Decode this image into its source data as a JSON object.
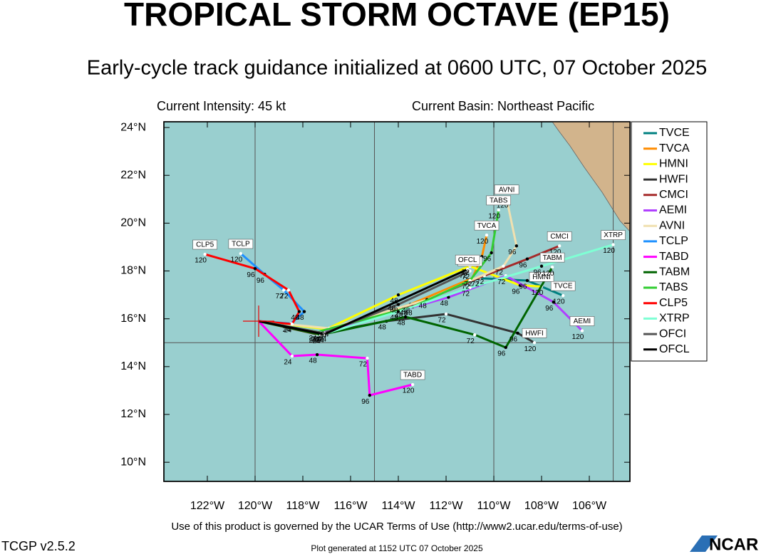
{
  "chart_data": {
    "type": "track-map",
    "title": "TROPICAL STORM OCTAVE (EP15)",
    "subtitle": "Early-cycle track guidance initialized at 0600 UTC, 07 October 2025",
    "intensity_label": "Current Intensity: 45 kt",
    "basin_label": "Current Basin: Northeast Pacific",
    "terms": "Use of this product is governed by the UCAR Terms of Use (http://www2.ucar.edu/terms-of-use)",
    "version": "TCGP v2.5.2",
    "generated": "Plot generated at 1152 UTC   07 October 2025",
    "logo": "NCAR",
    "xlim": [
      -123.82,
      -104.3
    ],
    "ylim": [
      9.2,
      24.24
    ],
    "xticks": [
      {
        "value": -122,
        "label": "122°W"
      },
      {
        "value": -120,
        "label": "120°W"
      },
      {
        "value": -118,
        "label": "118°W"
      },
      {
        "value": -116,
        "label": "116°W"
      },
      {
        "value": -114,
        "label": "114°W"
      },
      {
        "value": -112,
        "label": "112°W"
      },
      {
        "value": -110,
        "label": "110°W"
      },
      {
        "value": -108,
        "label": "108°W"
      },
      {
        "value": -106,
        "label": "106°W"
      }
    ],
    "yticks": [
      {
        "value": 10,
        "label": "10°N"
      },
      {
        "value": 12,
        "label": "12°N"
      },
      {
        "value": 14,
        "label": "14°N"
      },
      {
        "value": 16,
        "label": "16°N"
      },
      {
        "value": 18,
        "label": "18°N"
      },
      {
        "value": 20,
        "label": "20°N"
      },
      {
        "value": 22,
        "label": "22°N"
      },
      {
        "value": 24,
        "label": "24°N"
      }
    ],
    "grid_lon": [
      -120,
      -115,
      -110,
      -105
    ],
    "grid_lat": [
      15
    ],
    "current_position": {
      "lon": -119.85,
      "lat": 15.9
    },
    "hours": [
      0,
      24,
      48,
      72,
      96,
      120
    ],
    "series": [
      {
        "name": "TVCE",
        "color": "#008080",
        "lon": [
          -119.85,
          -117.3,
          -113.6,
          -110.6,
          -108.6,
          -107.1
        ],
        "lat": [
          15.9,
          15.4,
          16.5,
          17.7,
          17.6,
          16.97
        ]
      },
      {
        "name": "TVCA",
        "color": "#ff8c00",
        "lon": [
          -119.85,
          -117.3,
          -113.5,
          -110.9,
          -110.5,
          -110.3
        ],
        "lat": [
          15.9,
          15.4,
          16.6,
          17.7,
          18.6,
          19.5
        ]
      },
      {
        "name": "HMNI",
        "color": "#ffff00",
        "lon": [
          -119.85,
          -117.0,
          -114.0,
          -111.0,
          -108.9,
          -108.0
        ],
        "lat": [
          15.9,
          15.57,
          17.0,
          18.2,
          17.4,
          17.35
        ]
      },
      {
        "name": "HWFI",
        "color": "#333333",
        "lon": [
          -119.85,
          -117.2,
          -114.5,
          -112.0,
          -109.0,
          -108.3
        ],
        "lat": [
          15.9,
          15.4,
          15.9,
          16.2,
          15.4,
          15.0
        ]
      },
      {
        "name": "CMCI",
        "color": "#a52a2a",
        "lon": [
          -119.85,
          -117.4,
          -113.8,
          -110.4,
          -108.6,
          -107.25
        ],
        "lat": [
          15.9,
          15.35,
          16.4,
          17.8,
          18.5,
          19.05
        ]
      },
      {
        "name": "AEMI",
        "color": "#b040ff",
        "lon": [
          -119.85,
          -117.25,
          -111.9,
          -109.5,
          -107.5,
          -106.3
        ],
        "lat": [
          15.9,
          15.4,
          16.9,
          17.8,
          16.7,
          15.5
        ]
      },
      {
        "name": "AVNI",
        "color": "#f0e0b0",
        "lon": [
          -119.85,
          -116.9,
          -112.8,
          -109.6,
          -109.05,
          -109.46
        ],
        "lat": [
          15.9,
          15.6,
          16.8,
          18.2,
          19.05,
          21.0
        ]
      },
      {
        "name": "TCLP",
        "color": "#1e90ff",
        "lon": [
          -119.85,
          -118.5,
          -117.94,
          -118.8,
          -119.6,
          -120.6
        ],
        "lat": [
          15.9,
          15.8,
          16.3,
          17.2,
          17.86,
          18.73
        ]
      },
      {
        "name": "TABD",
        "color": "#ff00ff",
        "lon": [
          -119.85,
          -118.45,
          -117.4,
          -115.3,
          -115.2,
          -113.4
        ],
        "lat": [
          15.9,
          14.44,
          14.5,
          14.35,
          12.8,
          13.25
        ]
      },
      {
        "name": "TABM",
        "color": "#006400",
        "lon": [
          -119.85,
          -117.25,
          -113.7,
          -110.8,
          -109.5,
          -107.55
        ],
        "lat": [
          15.9,
          15.33,
          16.08,
          15.33,
          14.8,
          18.16
        ]
      },
      {
        "name": "TABS",
        "color": "#32cd32",
        "lon": [
          -119.85,
          -117.4,
          -113.4,
          -111.0,
          -110.1,
          -109.8
        ],
        "lat": [
          15.9,
          15.45,
          16.5,
          17.6,
          18.76,
          20.55
        ]
      },
      {
        "name": "CLP5",
        "color": "#ff0000",
        "lon": [
          -119.85,
          -118.45,
          -118.15,
          -118.6,
          -120.0,
          -122.1
        ],
        "lat": [
          15.9,
          15.78,
          16.3,
          17.2,
          18.1,
          18.7
        ]
      },
      {
        "name": "XTRP",
        "color": "#7fffd4",
        "lon": [
          -119.85,
          -117.0,
          -114.0,
          -111.0,
          -108.0,
          -105.0
        ],
        "lat": [
          15.9,
          15.4,
          16.3,
          17.3,
          18.2,
          19.1
        ]
      },
      {
        "name": "OFCI",
        "color": "#555555",
        "lon": [
          -119.85,
          -117.1,
          -114.0,
          -111.0,
          null,
          null
        ],
        "lat": [
          15.9,
          15.4,
          16.6,
          18.0,
          null,
          null
        ]
      },
      {
        "name": "OFCL",
        "color": "#000000",
        "lon": [
          -119.85,
          -117.1,
          -114.1,
          -111.1,
          null,
          null
        ],
        "lat": [
          15.9,
          15.35,
          16.7,
          18.07,
          null,
          null
        ]
      }
    ]
  }
}
